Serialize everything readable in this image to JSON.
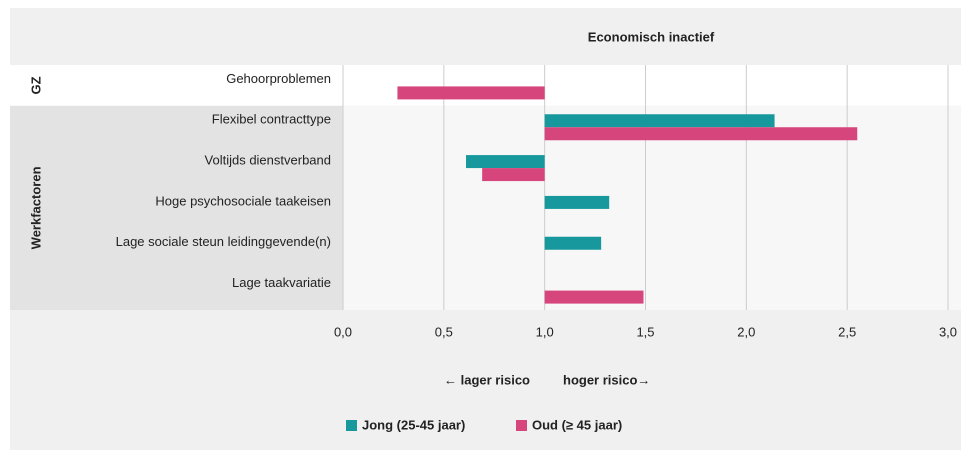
{
  "chart_data": {
    "type": "bar",
    "orientation": "horizontal",
    "title": "Economisch inactief",
    "groups": [
      {
        "name": "GZ",
        "categories": [
          "Gehoorproblemen"
        ]
      },
      {
        "name": "Werkfactoren",
        "categories": [
          "Flexibel contracttype",
          "Voltijds dienstverband",
          "Hoge psychosociale taakeisen",
          "Lage sociale steun leidinggevende(n)",
          "Lage taakvariatie"
        ]
      }
    ],
    "baseline": 1,
    "series": [
      {
        "name": "Jong (25-45 jaar)",
        "color": "#16989c",
        "values": [
          null,
          2.14,
          0.61,
          1.32,
          1.28,
          null
        ]
      },
      {
        "name": "Oud (≥ 45 jaar)",
        "color": "#d6457c",
        "values": [
          0.27,
          2.55,
          0.69,
          null,
          null,
          1.49
        ]
      }
    ],
    "xlim": [
      0,
      3
    ],
    "xticks": [
      {
        "value": 0,
        "label": "0,0"
      },
      {
        "value": 0.5,
        "label": "0,5"
      },
      {
        "value": 1,
        "label": "1,0"
      },
      {
        "value": 1.5,
        "label": "1,5"
      },
      {
        "value": 2,
        "label": "2,0"
      },
      {
        "value": 2.5,
        "label": "2,5"
      },
      {
        "value": 3,
        "label": "3,0"
      }
    ],
    "annotations": [
      "← lager risico",
      "hoger risico→"
    ],
    "grid": true,
    "legend": "bottom"
  }
}
